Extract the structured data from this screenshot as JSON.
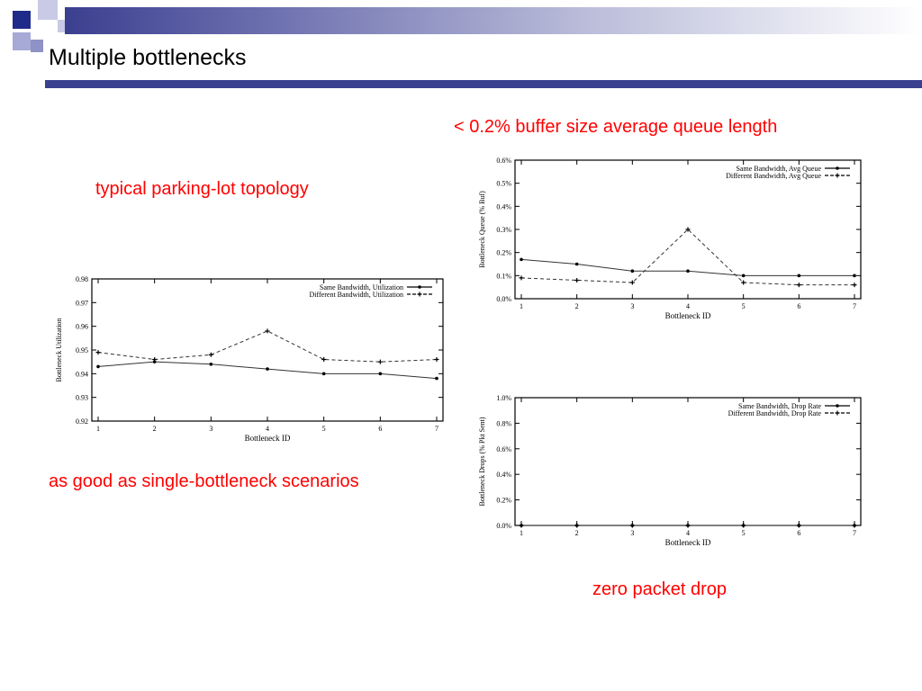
{
  "slide": {
    "title": "Multiple bottlenecks",
    "colors": {
      "accent": "#3b3f8f",
      "caption": "#ff0000"
    }
  },
  "captions": {
    "queue_note": "< 0.2% buffer size average queue length",
    "topology": "typical parking-lot topology",
    "utilization_note": "as good as single-bottleneck scenarios",
    "drop_note": "zero packet drop"
  },
  "chart_data": [
    {
      "id": "utilization",
      "type": "line",
      "xlabel": "Bottleneck ID",
      "ylabel": "Bottleneck Utilization",
      "x": [
        1,
        2,
        3,
        4,
        5,
        6,
        7
      ],
      "xlim": [
        1,
        7
      ],
      "ylim": [
        0.92,
        0.98
      ],
      "yticks": [
        "0.92",
        "0.93",
        "0.94",
        "0.95",
        "0.96",
        "0.97",
        "0.98"
      ],
      "legend": "top-right",
      "series": [
        {
          "name": "Same Bandwidth, Utilization",
          "values": [
            0.943,
            0.945,
            0.944,
            0.942,
            0.94,
            0.94,
            0.938
          ],
          "style": "solid"
        },
        {
          "name": "Different Bandwidth, Utilization",
          "values": [
            0.949,
            0.946,
            0.948,
            0.958,
            0.946,
            0.945,
            0.946
          ],
          "style": "dashed"
        }
      ]
    },
    {
      "id": "queue",
      "type": "line",
      "xlabel": "Bottleneck ID",
      "ylabel": "Bottleneck Queue (% Buf)",
      "x": [
        1,
        2,
        3,
        4,
        5,
        6,
        7
      ],
      "xlim": [
        1,
        7
      ],
      "ylim": [
        0,
        0.6
      ],
      "yticks": [
        "0.0%",
        "0.1%",
        "0.2%",
        "0.3%",
        "0.4%",
        "0.5%",
        "0.6%"
      ],
      "legend": "top-right",
      "series": [
        {
          "name": "Same Bandwidth, Avg Queue",
          "values": [
            0.17,
            0.15,
            0.12,
            0.12,
            0.1,
            0.1,
            0.1
          ],
          "style": "solid"
        },
        {
          "name": "Different Bandwidth, Avg Queue",
          "values": [
            0.09,
            0.08,
            0.07,
            0.3,
            0.07,
            0.06,
            0.06
          ],
          "style": "dashed"
        }
      ]
    },
    {
      "id": "drop",
      "type": "line",
      "xlabel": "Bottleneck ID",
      "ylabel": "Bottleneck Drops (% Pkt Sent)",
      "x": [
        1,
        2,
        3,
        4,
        5,
        6,
        7
      ],
      "xlim": [
        1,
        7
      ],
      "ylim": [
        0,
        1.0
      ],
      "yticks": [
        "0.0%",
        "0.2%",
        "0.4%",
        "0.6%",
        "0.8%",
        "1.0%"
      ],
      "legend": "top-right",
      "series": [
        {
          "name": "Same Bandwidth, Drop Rate",
          "values": [
            0,
            0,
            0,
            0,
            0,
            0,
            0
          ],
          "style": "solid"
        },
        {
          "name": "Different Bandwidth, Drop Rate",
          "values": [
            0,
            0,
            0,
            0,
            0,
            0,
            0
          ],
          "style": "dashed"
        }
      ]
    }
  ]
}
